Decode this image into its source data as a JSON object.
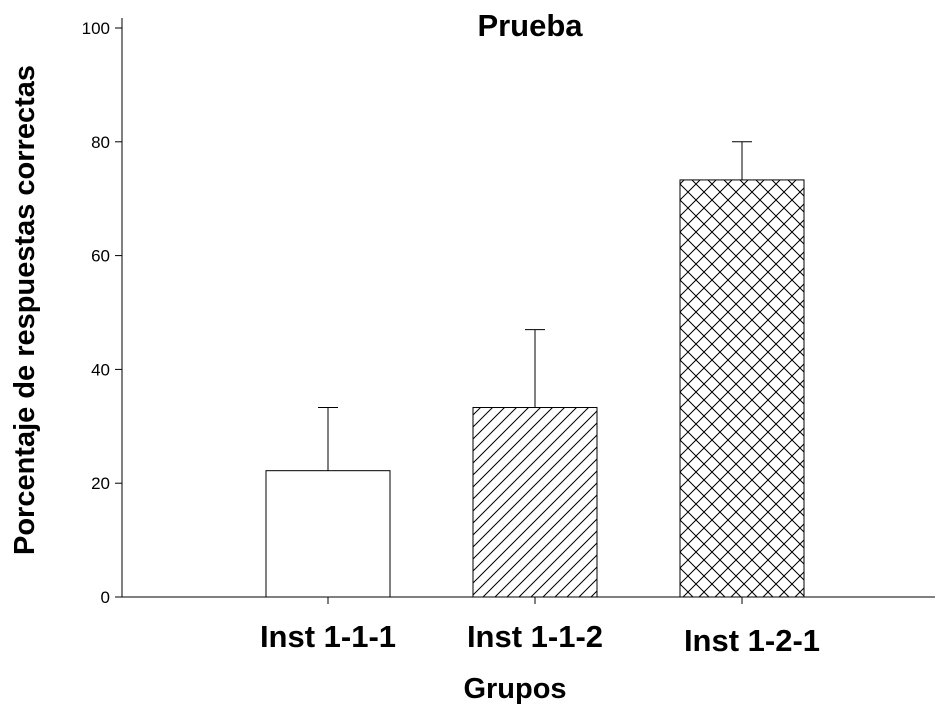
{
  "chart_data": {
    "type": "bar",
    "title": "Prueba",
    "xlabel": "Grupos",
    "ylabel": "Porcentaje de respuestas correctas",
    "categories": [
      "Inst 1-1-1",
      "Inst 1-1-2",
      "Inst 1-2-1"
    ],
    "values": [
      22.2,
      33.3,
      73.3
    ],
    "errors": [
      11.1,
      13.7,
      6.7
    ],
    "patterns": [
      "none",
      "diagonal",
      "crosshatch"
    ],
    "ylim": [
      0,
      100
    ],
    "yticks": [
      0,
      20,
      40,
      60,
      80,
      100
    ],
    "grid": false,
    "bar_fill": "#ffffff",
    "bar_stroke": "#000000"
  }
}
